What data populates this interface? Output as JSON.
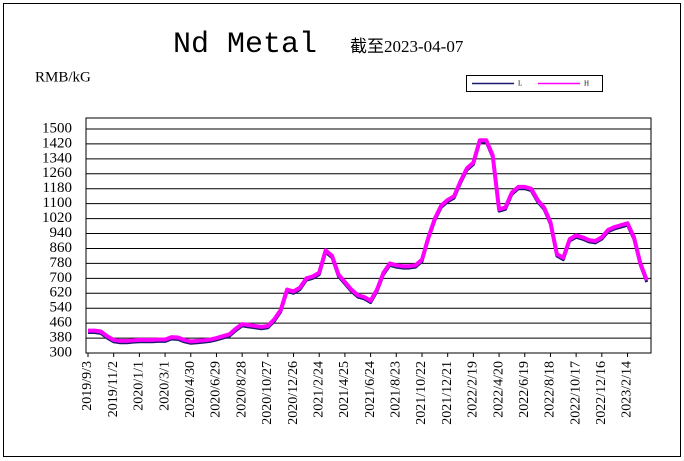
{
  "chart_data": {
    "type": "line",
    "title": "Nd Metal",
    "subtitle": "截至2023-04-07",
    "y_label": "RMB/kG",
    "categories": [
      "2019/9/3",
      null,
      null,
      null,
      "2019/11/2",
      null,
      null,
      null,
      "2020/1/1",
      null,
      null,
      null,
      "2020/3/1",
      null,
      null,
      null,
      "2020/4/30",
      null,
      null,
      null,
      "2020/6/29",
      null,
      null,
      null,
      "2020/8/28",
      null,
      null,
      null,
      "2020/10/27",
      null,
      null,
      null,
      "2020/12/26",
      null,
      null,
      null,
      "2021/2/24",
      null,
      null,
      null,
      "2021/4/25",
      null,
      null,
      null,
      "2021/6/24",
      null,
      null,
      null,
      "2021/8/23",
      null,
      null,
      null,
      "2021/10/22",
      null,
      null,
      null,
      "2021/12/21",
      null,
      null,
      null,
      "2022/2/19",
      null,
      null,
      null,
      "2022/4/20",
      null,
      null,
      null,
      "2022/6/19",
      null,
      null,
      null,
      "2022/8/18",
      null,
      null,
      null,
      "2022/10/17",
      null,
      null,
      null,
      "2022/12/16",
      null,
      null,
      null,
      "2023/2/14",
      null,
      null,
      null
    ],
    "series": [
      {
        "name": "L",
        "color": "#1a1a6e",
        "values": [
          410,
          410,
          405,
          380,
          360,
          355,
          355,
          358,
          360,
          360,
          360,
          362,
          362,
          375,
          373,
          360,
          352,
          355,
          358,
          362,
          370,
          380,
          390,
          420,
          445,
          440,
          435,
          430,
          435,
          470,
          520,
          630,
          620,
          640,
          690,
          700,
          720,
          840,
          810,
          710,
          670,
          630,
          600,
          590,
          570,
          630,
          720,
          770,
          760,
          755,
          755,
          760,
          790,
          910,
          1010,
          1080,
          1110,
          1130,
          1210,
          1280,
          1310,
          1430,
          1430,
          1350,
          1060,
          1070,
          1150,
          1180,
          1180,
          1170,
          1110,
          1070,
          990,
          820,
          800,
          900,
          920,
          910,
          895,
          890,
          910,
          950,
          965,
          975,
          985,
          910,
          770,
          680
        ]
      },
      {
        "name": "H",
        "color": "#ff00ff",
        "values": [
          420,
          420,
          415,
          390,
          370,
          365,
          365,
          368,
          370,
          370,
          370,
          372,
          372,
          385,
          383,
          370,
          362,
          365,
          368,
          372,
          380,
          390,
          400,
          430,
          455,
          450,
          445,
          440,
          445,
          480,
          530,
          640,
          630,
          650,
          700,
          710,
          730,
          850,
          820,
          720,
          680,
          640,
          610,
          600,
          580,
          640,
          730,
          780,
          770,
          765,
          765,
          770,
          800,
          920,
          1020,
          1090,
          1120,
          1140,
          1220,
          1290,
          1320,
          1440,
          1440,
          1360,
          1070,
          1080,
          1160,
          1190,
          1190,
          1180,
          1120,
          1080,
          1000,
          830,
          810,
          910,
          930,
          920,
          905,
          900,
          920,
          960,
          975,
          985,
          995,
          920,
          780,
          690
        ]
      }
    ],
    "ylim": [
      300,
      1500
    ],
    "yticks": [
      300,
      380,
      460,
      540,
      620,
      700,
      780,
      860,
      940,
      1020,
      1100,
      1180,
      1260,
      1340,
      1420,
      1500
    ],
    "grid": true
  }
}
